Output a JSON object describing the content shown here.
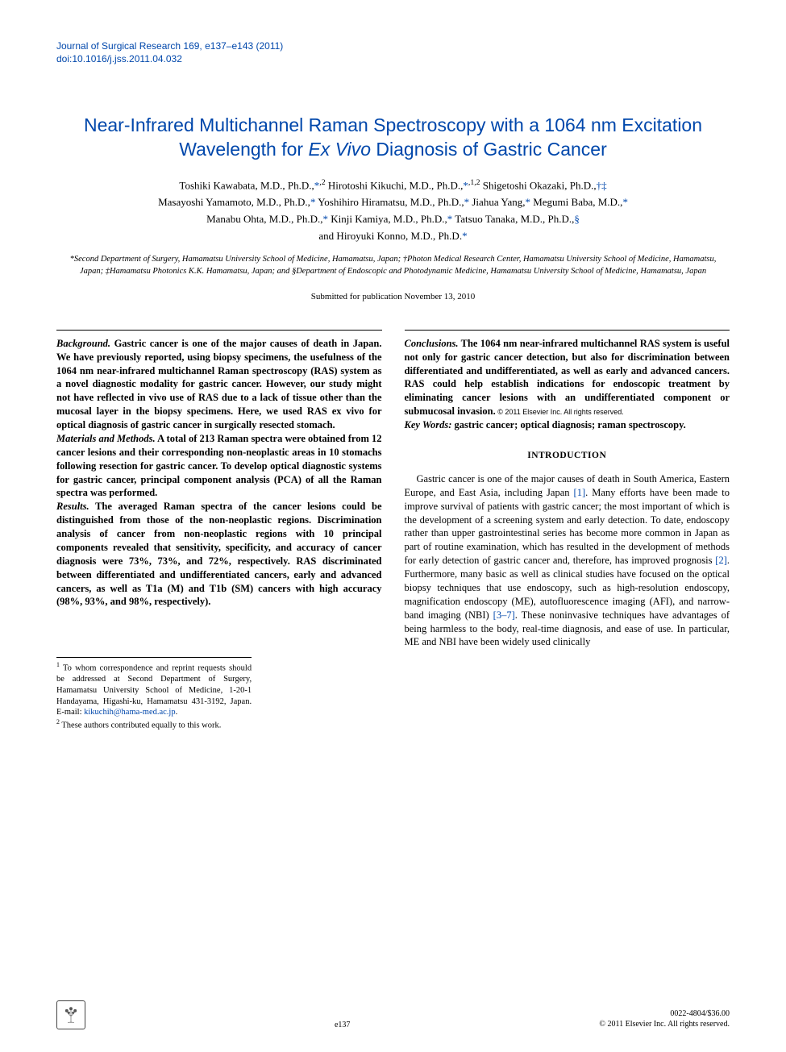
{
  "journal": {
    "name": "Journal of Surgical Research 169, e137–e143 (2011)",
    "doi": "doi:10.1016/j.jss.2011.04.032",
    "color": "#0047ab"
  },
  "title": {
    "line1": "Near-Infrared Multichannel Raman Spectroscopy with a 1064 nm Excitation",
    "line2_pre": "Wavelength for ",
    "line2_italic": "Ex Vivo",
    "line2_post": " Diagnosis of Gastric Cancer"
  },
  "authors_html": "Toshiki Kawabata, M.D., Ph.D.,<a>*</a><sup>,2</sup> Hirotoshi Kikuchi, M.D., Ph.D.,<a>*</a><sup>,1,2</sup> Shigetoshi Okazaki, Ph.D.,<a>†‡</a><br>Masayoshi Yamamoto, M.D., Ph.D.,<a>*</a> Yoshihiro Hiramatsu, M.D., Ph.D.,<a>*</a> Jiahua Yang,<a>*</a> Megumi Baba, M.D.,<a>*</a><br>Manabu Ohta, M.D., Ph.D.,<a>*</a> Kinji Kamiya, M.D., Ph.D.,<a>*</a> Tatsuo Tanaka, M.D., Ph.D.,<a>§</a><br>and Hiroyuki Konno, M.D., Ph.D.<a>*</a>",
  "affiliations": "*Second Department of Surgery, Hamamatsu University School of Medicine, Hamamatsu, Japan; †Photon Medical Research Center, Hamamatsu University School of Medicine, Hamamatsu, Japan; ‡Hamamatsu Photonics K.K. Hamamatsu, Japan; and §Department of Endoscopic and Photodynamic Medicine, Hamamatsu University School of Medicine, Hamamatsu, Japan",
  "submitted": "Submitted for publication November 13, 2010",
  "abstract": {
    "background_label": "Background.",
    "background_text": " Gastric cancer is one of the major causes of death in Japan. We have previously reported, using biopsy specimens, the usefulness of the 1064 nm near-infrared multichannel Raman spectroscopy (RAS) system as a novel diagnostic modality for gastric cancer. However, our study might not have reflected in vivo use of RAS due to a lack of tissue other than the mucosal layer in the biopsy specimens. Here, we used RAS ex vivo for optical diagnosis of gastric cancer in surgically resected stomach.",
    "methods_label": "Materials and Methods.",
    "methods_text": " A total of 213 Raman spectra were obtained from 12 cancer lesions and their corresponding non-neoplastic areas in 10 stomachs following resection for gastric cancer. To develop optical diagnostic systems for gastric cancer, principal component analysis (PCA) of all the Raman spectra was performed.",
    "results_label": "Results.",
    "results_text": " The averaged Raman spectra of the cancer lesions could be distinguished from those of the non-neoplastic regions. Discrimination analysis of cancer from non-neoplastic regions with 10 principal components revealed that sensitivity, specificity, and accuracy of cancer diagnosis were 73%, 73%, and 72%, respectively. RAS discriminated between differentiated and undifferentiated cancers, early and advanced cancers, as well as T1a (M) and T1b (SM) cancers with high accuracy (98%, 93%, and 98%, respectively).",
    "conclusions_label": "Conclusions.",
    "conclusions_text": " The 1064 nm near-infrared multichannel RAS system is useful not only for gastric cancer detection, but also for discrimination between differentiated and undifferentiated, as well as early and advanced cancers. RAS could help establish indications for endoscopic treatment by eliminating cancer lesions with an undifferentiated component or submucosal invasion.",
    "copyright": " © 2011 Elsevier Inc. All rights reserved.",
    "keywords_label": "Key Words:",
    "keywords_text": " gastric cancer; optical diagnosis; raman spectroscopy."
  },
  "intro": {
    "heading": "INTRODUCTION",
    "body_html": "Gastric cancer is one of the major causes of death in South America, Eastern Europe, and East Asia, including Japan <a>[1]</a>. Many efforts have been made to improve survival of patients with gastric cancer; the most important of which is the development of a screening system and early detection. To date, endoscopy rather than upper gastrointestinal series has become more common in Japan as part of routine examination, which has resulted in the development of methods for early detection of gastric cancer and, therefore, has improved prognosis <a>[2]</a>. Furthermore, many basic as well as clinical studies have focused on the optical biopsy techniques that use endoscopy, such as high-resolution endoscopy, magnification endoscopy (ME), autofluorescence imaging (AFI), and narrow-band imaging (NBI) <a>[3–7]</a>. These noninvasive techniques have advantages of being harmless to the body, real-time diagnosis, and ease of use. In particular, ME and NBI have been widely used clinically"
  },
  "footnotes": {
    "fn1_html": "<sup>1</sup> To whom correspondence and reprint requests should be addressed at Second Department of Surgery, Hamamatsu University School of Medicine, 1-20-1 Handayama, Higashi-ku, Hamamatsu 431-3192, Japan. E-mail: <a>kikuchih@hama-med.ac.jp</a>.",
    "fn2_html": "<sup>2</sup> These authors contributed equally to this work."
  },
  "footer": {
    "page_number": "e137",
    "issn": "0022-4804/$36.00",
    "copyright": "© 2011 Elsevier Inc. All rights reserved."
  },
  "style": {
    "title_color": "#0047ab",
    "link_color": "#0047ab",
    "body_font": "Georgia, serif",
    "header_font": "Arial, sans-serif",
    "background": "#ffffff",
    "text_color": "#000000"
  }
}
